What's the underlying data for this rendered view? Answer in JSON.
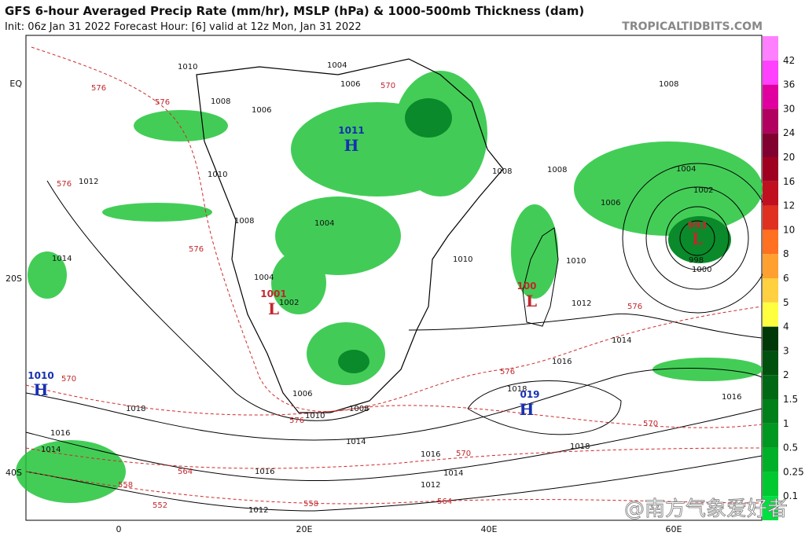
{
  "header": {
    "title": "GFS 6-hour Averaged Precip Rate (mm/hr), MSLP (hPa) & 1000-500mb Thickness (dam)",
    "subtitle": "Init: 06z Jan 31 2022   Forecast Hour: [6]   valid at 12z Mon, Jan 31 2022",
    "site": "TROPICALTIDBITS.COM"
  },
  "colorbar": [
    "0.1",
    "0.25",
    "0.5",
    "1",
    "1.5",
    "2",
    "3",
    "4",
    "5",
    "6",
    "8",
    "10",
    "12",
    "16",
    "20",
    "24",
    "30",
    "36",
    "42"
  ],
  "lat_labels": [
    "EQ",
    "20S",
    "40S"
  ],
  "lon_labels": [
    "0",
    "20E",
    "40E",
    "60E"
  ],
  "centers": [
    {
      "letter": "H",
      "pressure": "1011"
    },
    {
      "letter": "L",
      "pressure": "1001"
    },
    {
      "letter": "L",
      "pressure": "100"
    },
    {
      "letter": "L",
      "pressure": "993"
    },
    {
      "letter": "H",
      "pressure": "1010"
    },
    {
      "letter": "H",
      "pressure": "019"
    }
  ],
  "isobar_labels": [
    "1010",
    "1004",
    "1006",
    "1008",
    "1006",
    "1010",
    "1012",
    "1014",
    "1008",
    "1004",
    "1002",
    "1004",
    "1010",
    "1008",
    "1008",
    "1006",
    "1004",
    "1002",
    "1000",
    "998",
    "1010",
    "1012",
    "1014",
    "1016",
    "1018",
    "1014",
    "1016",
    "1014",
    "1012",
    "1016",
    "1018",
    "1012",
    "1010",
    "1008",
    "1006",
    "1016",
    "1014",
    "1018",
    "1016",
    "1008"
  ],
  "thickness_labels": [
    "576",
    "576",
    "576",
    "576",
    "576",
    "576",
    "576",
    "570",
    "570",
    "570",
    "570",
    "564",
    "564",
    "558",
    "558",
    "552"
  ],
  "watermark": "@南方气象爱好者"
}
